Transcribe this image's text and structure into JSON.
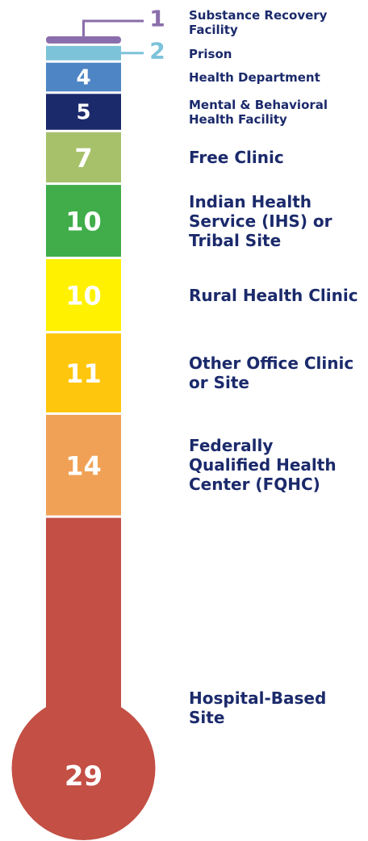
{
  "chart_data": {
    "type": "thermometer",
    "categories": [
      "Substance Recovery Facility",
      "Prison",
      "Health Department",
      "Mental & Behavioral Health Facility",
      "Free Clinic",
      "Indian Health Service (IHS) or Tribal Site",
      "Rural Health Clinic",
      "Other Office Clinic or Site",
      "Federally Qualified Health Center (FQHC)",
      "Hospital-Based Site"
    ],
    "values": [
      1,
      2,
      4,
      5,
      7,
      10,
      10,
      11,
      14,
      29
    ],
    "colors": [
      "#8a6dab",
      "#7cc3da",
      "#4e86c5",
      "#1b2a6b",
      "#a7c16a",
      "#40ad4a",
      "#fff100",
      "#ffc60e",
      "#f0a156",
      "#c34f45"
    ]
  }
}
